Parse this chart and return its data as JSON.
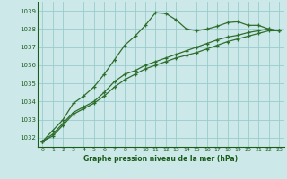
{
  "title": "Graphe pression niveau de la mer (hPa)",
  "bg_color": "#cce8e8",
  "grid_color": "#99cccc",
  "line_color": "#2d6e2d",
  "text_color": "#1a5c1a",
  "xlim": [
    -0.5,
    23.5
  ],
  "ylim": [
    1031.5,
    1039.5
  ],
  "yticks": [
    1032,
    1033,
    1034,
    1035,
    1036,
    1037,
    1038,
    1039
  ],
  "xticks": [
    0,
    1,
    2,
    3,
    4,
    5,
    6,
    7,
    8,
    9,
    10,
    11,
    12,
    13,
    14,
    15,
    16,
    17,
    18,
    19,
    20,
    21,
    22,
    23
  ],
  "series1_x": [
    0,
    1,
    2,
    3,
    4,
    5,
    6,
    7,
    8,
    9,
    10,
    11,
    12,
    13,
    14,
    15,
    16,
    17,
    18,
    19,
    20,
    21,
    22,
    23
  ],
  "series1_y": [
    1031.8,
    1032.4,
    1033.0,
    1033.9,
    1034.3,
    1034.8,
    1035.5,
    1036.3,
    1037.1,
    1037.6,
    1038.2,
    1038.9,
    1038.85,
    1038.5,
    1038.0,
    1037.9,
    1038.0,
    1038.15,
    1038.35,
    1038.4,
    1038.2,
    1038.2,
    1038.0,
    1037.9
  ],
  "series2_x": [
    0,
    1,
    2,
    3,
    4,
    5,
    6,
    7,
    8,
    9,
    10,
    11,
    12,
    13,
    14,
    15,
    16,
    17,
    18,
    19,
    20,
    21,
    22,
    23
  ],
  "series2_y": [
    1031.8,
    1032.2,
    1032.8,
    1033.4,
    1033.7,
    1034.0,
    1034.5,
    1035.1,
    1035.5,
    1035.7,
    1036.0,
    1036.2,
    1036.4,
    1036.6,
    1036.8,
    1037.0,
    1037.2,
    1037.4,
    1037.55,
    1037.65,
    1037.8,
    1037.9,
    1038.0,
    1037.9
  ],
  "series3_x": [
    0,
    1,
    2,
    3,
    4,
    5,
    6,
    7,
    8,
    9,
    10,
    11,
    12,
    13,
    14,
    15,
    16,
    17,
    18,
    19,
    20,
    21,
    22,
    23
  ],
  "series3_y": [
    1031.8,
    1032.1,
    1032.7,
    1033.3,
    1033.6,
    1033.9,
    1034.3,
    1034.8,
    1035.2,
    1035.5,
    1035.8,
    1036.0,
    1036.2,
    1036.4,
    1036.55,
    1036.7,
    1036.9,
    1037.1,
    1037.3,
    1037.45,
    1037.6,
    1037.75,
    1037.9,
    1037.9
  ]
}
